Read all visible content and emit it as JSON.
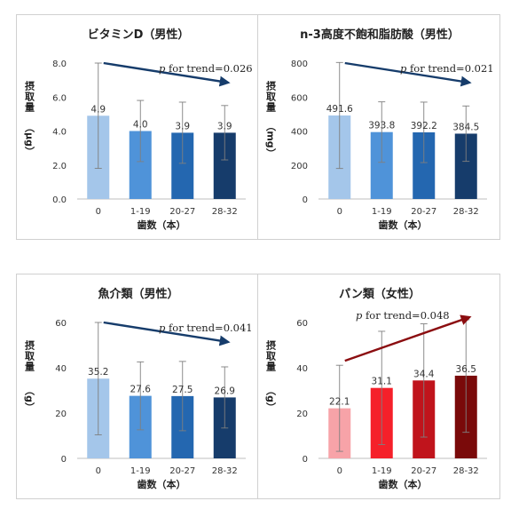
{
  "chart_data": [
    {
      "type": "bar",
      "title": "ビタミンD（男性）",
      "xlabel": "歯数（本）",
      "ylabel_top": "摂取量",
      "ylabel_unit": "（μg）",
      "categories": [
        "0",
        "1-19",
        "20-27",
        "28-32"
      ],
      "values": [
        4.9,
        4.0,
        3.9,
        3.9
      ],
      "value_labels": [
        "4.9",
        "4.0",
        "3.9",
        "3.9"
      ],
      "error_bars_sd": [
        3.1,
        1.8,
        1.8,
        1.6
      ],
      "ylim": [
        0,
        8
      ],
      "yticks": [
        0,
        2,
        4,
        6,
        8
      ],
      "ytick_labels": [
        "0.0",
        "2.0",
        "4.0",
        "6.0",
        "8.0"
      ],
      "trend_p_label": "p",
      "trend_text": " for trend=0.026",
      "trend_direction": "decreasing",
      "bar_colors": [
        "#a4c6ea",
        "#4f93d9",
        "#2467b0",
        "#163c6b"
      ],
      "arrow_color": "#163c6b"
    },
    {
      "type": "bar",
      "title": "n-3高度不飽和脂肪酸（男性）",
      "xlabel": "歯数（本）",
      "ylabel_top": "摂取量",
      "ylabel_unit": "（mg）",
      "categories": [
        "0",
        "1-19",
        "20-27",
        "28-32"
      ],
      "values": [
        491.6,
        393.8,
        392.2,
        384.5
      ],
      "value_labels": [
        "491.6",
        "393.8",
        "392.2",
        "384.5"
      ],
      "error_bars_sd": [
        312,
        178,
        178,
        163
      ],
      "ylim": [
        0,
        800
      ],
      "yticks": [
        0,
        200,
        400,
        600,
        800
      ],
      "ytick_labels": [
        "0",
        "200",
        "400",
        "600",
        "800"
      ],
      "trend_p_label": "p",
      "trend_text": " for trend=0.021",
      "trend_direction": "decreasing",
      "bar_colors": [
        "#a4c6ea",
        "#4f93d9",
        "#2467b0",
        "#163c6b"
      ],
      "arrow_color": "#163c6b"
    },
    {
      "type": "bar",
      "title": "魚介類（男性）",
      "xlabel": "歯数（本）",
      "ylabel_top": "摂取量",
      "ylabel_unit": "（g）",
      "categories": [
        "0",
        "1-19",
        "20-27",
        "28-32"
      ],
      "values": [
        35.2,
        27.6,
        27.5,
        26.9
      ],
      "value_labels": [
        "35.2",
        "27.6",
        "27.5",
        "26.9"
      ],
      "error_bars_sd": [
        24.8,
        15.0,
        15.3,
        13.5
      ],
      "ylim": [
        0,
        60
      ],
      "yticks": [
        0,
        20,
        40,
        60
      ],
      "ytick_labels": [
        "0",
        "20",
        "40",
        "60"
      ],
      "trend_p_label": "p",
      "trend_text": " for trend=0.041",
      "trend_direction": "decreasing",
      "bar_colors": [
        "#a4c6ea",
        "#4f93d9",
        "#2467b0",
        "#163c6b"
      ],
      "arrow_color": "#163c6b"
    },
    {
      "type": "bar",
      "title": "パン類（女性）",
      "xlabel": "歯数（本）",
      "ylabel_top": "摂取量",
      "ylabel_unit": "（g）",
      "categories": [
        "0",
        "1-19",
        "20-27",
        "28-32"
      ],
      "values": [
        22.1,
        31.1,
        34.4,
        36.5
      ],
      "value_labels": [
        "22.1",
        "31.1",
        "34.4",
        "36.5"
      ],
      "error_bars_sd": [
        19.0,
        25.0,
        25.0,
        25.0
      ],
      "ylim": [
        0,
        60
      ],
      "yticks": [
        0,
        20,
        40,
        60
      ],
      "ytick_labels": [
        "0",
        "20",
        "40",
        "60"
      ],
      "trend_p_label": "p",
      "trend_text": " for trend=0.048",
      "trend_direction": "increasing",
      "bar_colors": [
        "#f7a3a8",
        "#f5202a",
        "#c0141c",
        "#7a0a0a"
      ],
      "arrow_color": "#8b0d10"
    }
  ]
}
